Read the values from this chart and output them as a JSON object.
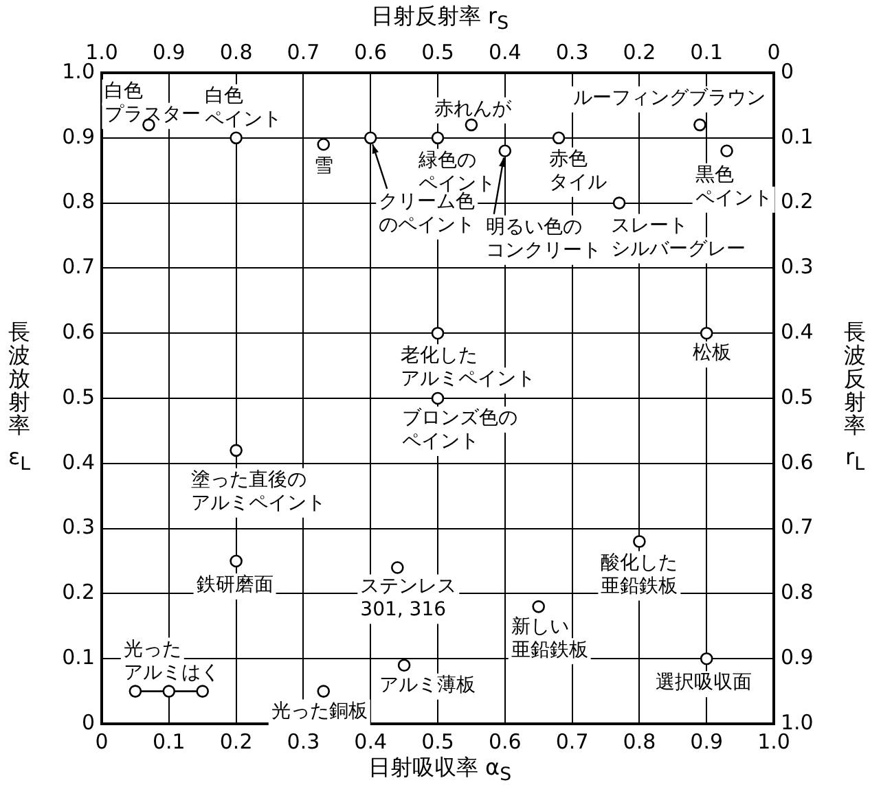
{
  "chart_data": {
    "type": "scatter",
    "xlabel": "日射吸収率 α$_{S}$",
    "x2label": "日射反射率 r$_{S}$",
    "ylabel": "長波放射率 ε$_{L}$",
    "y2label": "長波反射率 r$_{L}$",
    "xlim": [
      0,
      1
    ],
    "xticks": [
      0,
      0.1,
      0.2,
      0.3,
      0.4,
      0.5,
      0.6,
      0.7,
      0.8,
      0.9,
      {
        "value": 1,
        "label": "1.0"
      }
    ],
    "x2lim": [
      1,
      0
    ],
    "x2ticks": [
      {
        "value": 1,
        "label": "1.0"
      },
      0.9,
      0.8,
      0.7,
      0.6,
      0.5,
      0.4,
      0.3,
      0.2,
      0.1,
      0
    ],
    "ylim": [
      0,
      1
    ],
    "yticks": [
      0,
      0.1,
      0.2,
      0.3,
      0.4,
      0.5,
      0.6,
      0.7,
      0.8,
      0.9,
      {
        "value": 1,
        "label": "1.0"
      }
    ],
    "y2lim": [
      1,
      0
    ],
    "y2ticks": [
      {
        "value": 1,
        "label": "1.0"
      },
      0.9,
      0.8,
      0.7,
      0.6,
      0.5,
      0.4,
      0.3,
      0.2,
      0.1,
      0
    ],
    "grid": true,
    "marker": "circle",
    "series": [
      {
        "type": "scatter",
        "color": "#000000",
        "x": [
          0.07,
          0.2,
          0.33,
          0.4,
          0.5,
          0.55,
          0.6,
          0.68,
          0.77,
          0.89,
          0.93,
          0.9,
          0.5,
          0.5,
          0.2,
          0.2,
          0.44,
          0.33,
          0.45,
          0.65,
          0.8,
          0.9
        ],
        "values": [
          0.92,
          0.9,
          0.89,
          0.9,
          0.9,
          0.92,
          0.88,
          0.9,
          0.8,
          0.92,
          0.88,
          0.6,
          0.6,
          0.5,
          0.42,
          0.25,
          0.24,
          0.05,
          0.09,
          0.18,
          0.28,
          0.1
        ]
      },
      {
        "type": "line",
        "color": "#000000",
        "x": [
          0.05,
          0.1,
          0.15
        ],
        "values": [
          0.05,
          0.05,
          0.05
        ]
      }
    ],
    "annotations": [
      {
        "text": "白色プラスター",
        "x": 0.07,
        "y": 0.92
      },
      {
        "text": "白色ペイント",
        "x": 0.2,
        "y": 0.9
      },
      {
        "text": "雪",
        "x": 0.33,
        "y": 0.89
      },
      {
        "text": "クリーム色のペイント",
        "x": 0.4,
        "y": 0.9
      },
      {
        "text": "緑色のペイント",
        "x": 0.5,
        "y": 0.9
      },
      {
        "text": "赤れんが",
        "x": 0.55,
        "y": 0.92
      },
      {
        "text": "明るい色のコンクリート",
        "x": 0.6,
        "y": 0.88
      },
      {
        "text": "赤色タイル",
        "x": 0.68,
        "y": 0.9
      },
      {
        "text": "スレートシルバーグレー",
        "x": 0.77,
        "y": 0.8
      },
      {
        "text": "ルーフィングブラウン",
        "x": 0.89,
        "y": 0.92
      },
      {
        "text": "黒色ペイント",
        "x": 0.93,
        "y": 0.88
      },
      {
        "text": "松板",
        "x": 0.9,
        "y": 0.6
      },
      {
        "text": "老化したアルミペイント",
        "x": 0.5,
        "y": 0.6
      },
      {
        "text": "ブロンズ色のペイント",
        "x": 0.5,
        "y": 0.5
      },
      {
        "text": "塗った直後のアルミペイント",
        "x": 0.2,
        "y": 0.42
      },
      {
        "text": "鉄研磨面",
        "x": 0.2,
        "y": 0.25
      },
      {
        "text": "ステンレス301, 316",
        "x": 0.44,
        "y": 0.24
      },
      {
        "text": "光ったアルミはく",
        "x": 0.1,
        "y": 0.05
      },
      {
        "text": "光った銅板",
        "x": 0.33,
        "y": 0.05
      },
      {
        "text": "アルミ薄板",
        "x": 0.45,
        "y": 0.09
      },
      {
        "text": "新しい亜鉛鉄板",
        "x": 0.65,
        "y": 0.18
      },
      {
        "text": "酸化した亜鉛鉄板",
        "x": 0.8,
        "y": 0.28
      },
      {
        "text": "選択吸収面",
        "x": 0.9,
        "y": 0.1
      }
    ]
  }
}
